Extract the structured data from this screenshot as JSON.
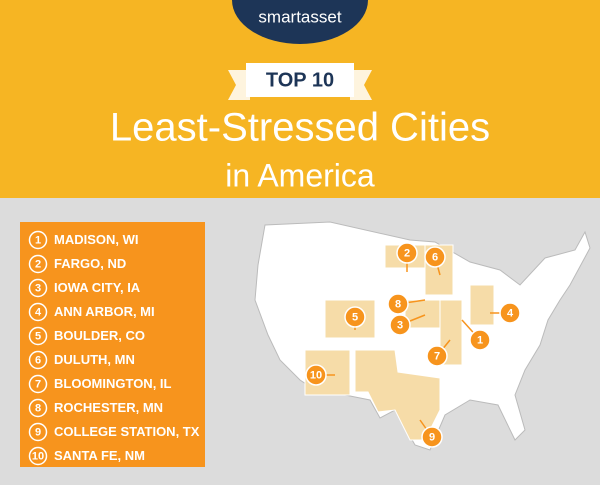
{
  "header": {
    "logo": "smartasset",
    "badge": "TOP 10",
    "title": "Least-Stressed Cities",
    "subtitle": "in America"
  },
  "list": [
    {
      "rank": 1,
      "city": "MADISON, WI"
    },
    {
      "rank": 2,
      "city": "FARGO, ND"
    },
    {
      "rank": 3,
      "city": "IOWA CITY, IA"
    },
    {
      "rank": 4,
      "city": "ANN ARBOR, MI"
    },
    {
      "rank": 5,
      "city": "BOULDER, CO"
    },
    {
      "rank": 6,
      "city": "DULUTH, MN"
    },
    {
      "rank": 7,
      "city": "BLOOMINGTON, IL"
    },
    {
      "rank": 8,
      "city": "ROCHESTER, MN"
    },
    {
      "rank": 9,
      "city": "COLLEGE STATION, TX"
    },
    {
      "rank": 10,
      "city": "SANTA FE, NM"
    }
  ]
}
